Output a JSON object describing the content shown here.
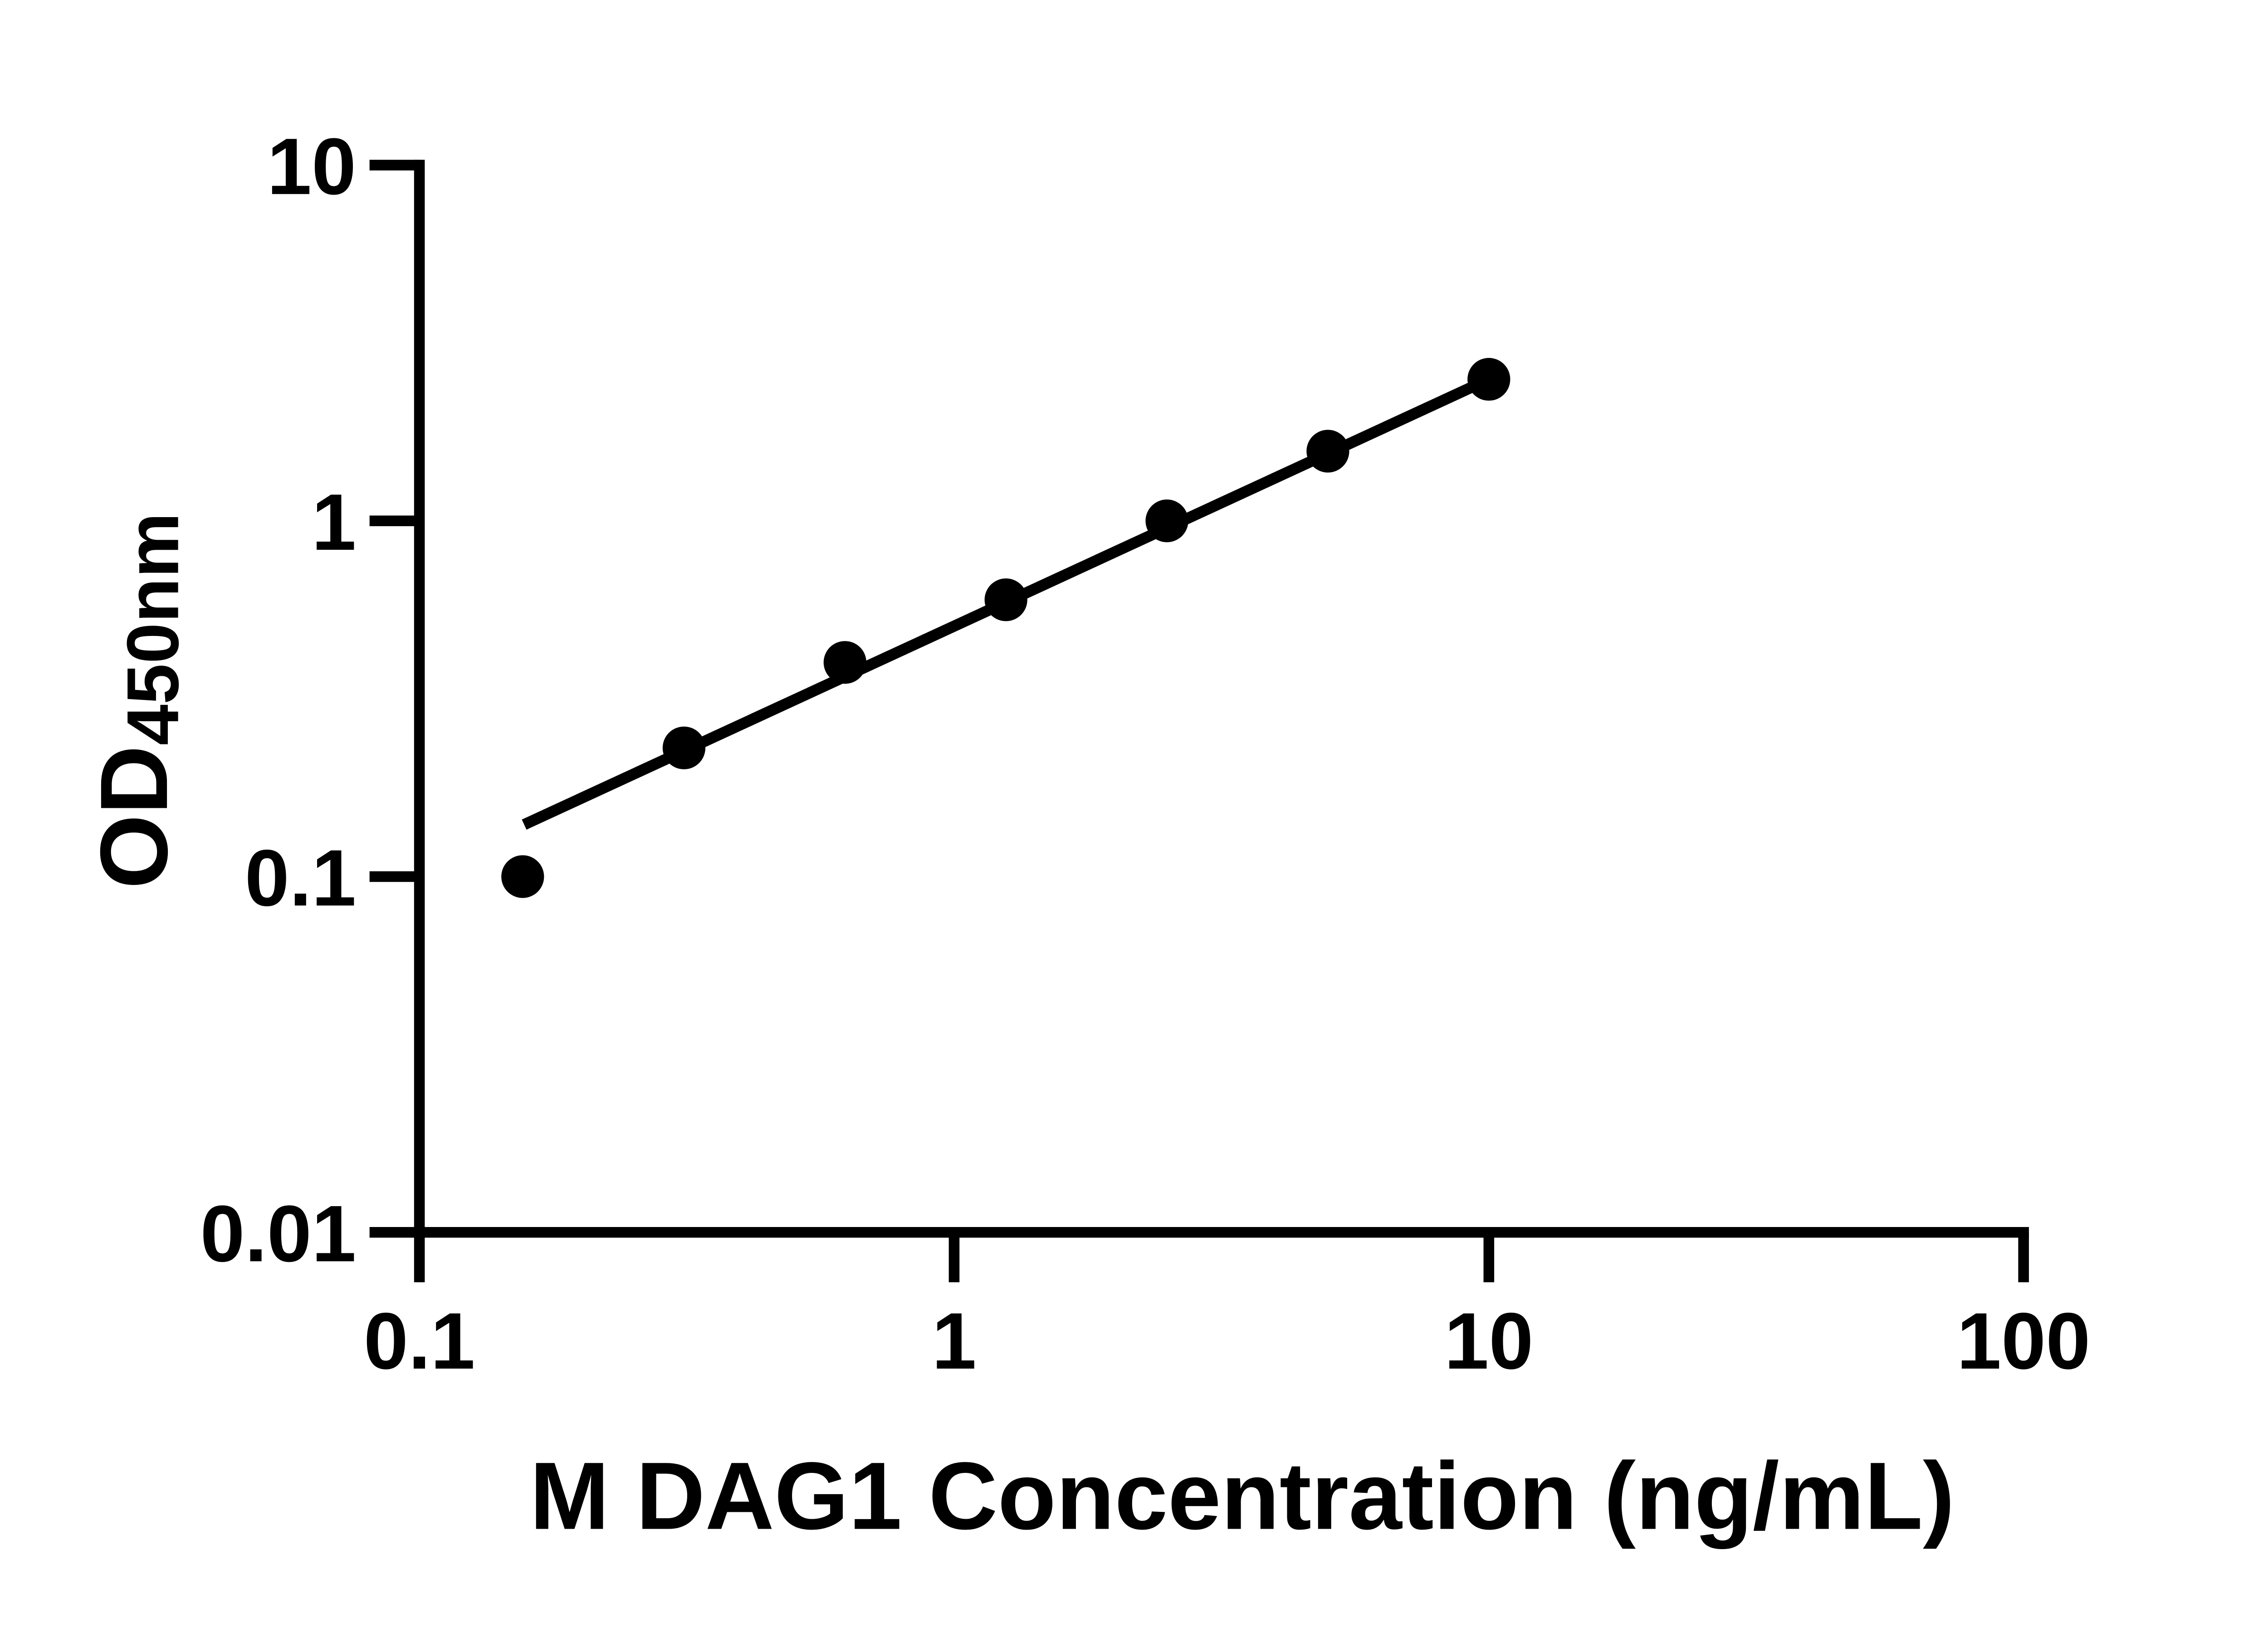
{
  "page": {
    "background": "#ffffff",
    "foreground": "#000000"
  },
  "chart_data": {
    "type": "scatter",
    "title": "",
    "xlabel": "M DAG1 Concentration (ng/mL)",
    "ylabel": "OD450nm",
    "ylabel_main": "OD",
    "ylabel_sub": "450nm",
    "x_scale": "log",
    "y_scale": "log",
    "xlim": [
      0.1,
      100
    ],
    "ylim": [
      0.01,
      10
    ],
    "x_ticks": [
      0.1,
      1,
      10,
      100
    ],
    "x_tick_labels": [
      "0.1",
      "1",
      "10",
      "100"
    ],
    "y_ticks": [
      0.01,
      0.1,
      1,
      10
    ],
    "y_tick_labels": [
      "0.01",
      "0.1",
      "1",
      "10"
    ],
    "grid": false,
    "legend": "none",
    "marker_color": "#000000",
    "line_color": "#000000",
    "axis_color": "#000000",
    "series": [
      {
        "x": [
          0.156,
          0.3125,
          0.625,
          1.25,
          2.5,
          5,
          10
        ],
        "y": [
          0.1,
          0.23,
          0.4,
          0.6,
          1.0,
          1.57,
          2.5
        ]
      }
    ],
    "fit_line": {
      "x_start": 0.157,
      "y_start": 0.14,
      "x_end": 10,
      "y_end": 2.5
    }
  }
}
